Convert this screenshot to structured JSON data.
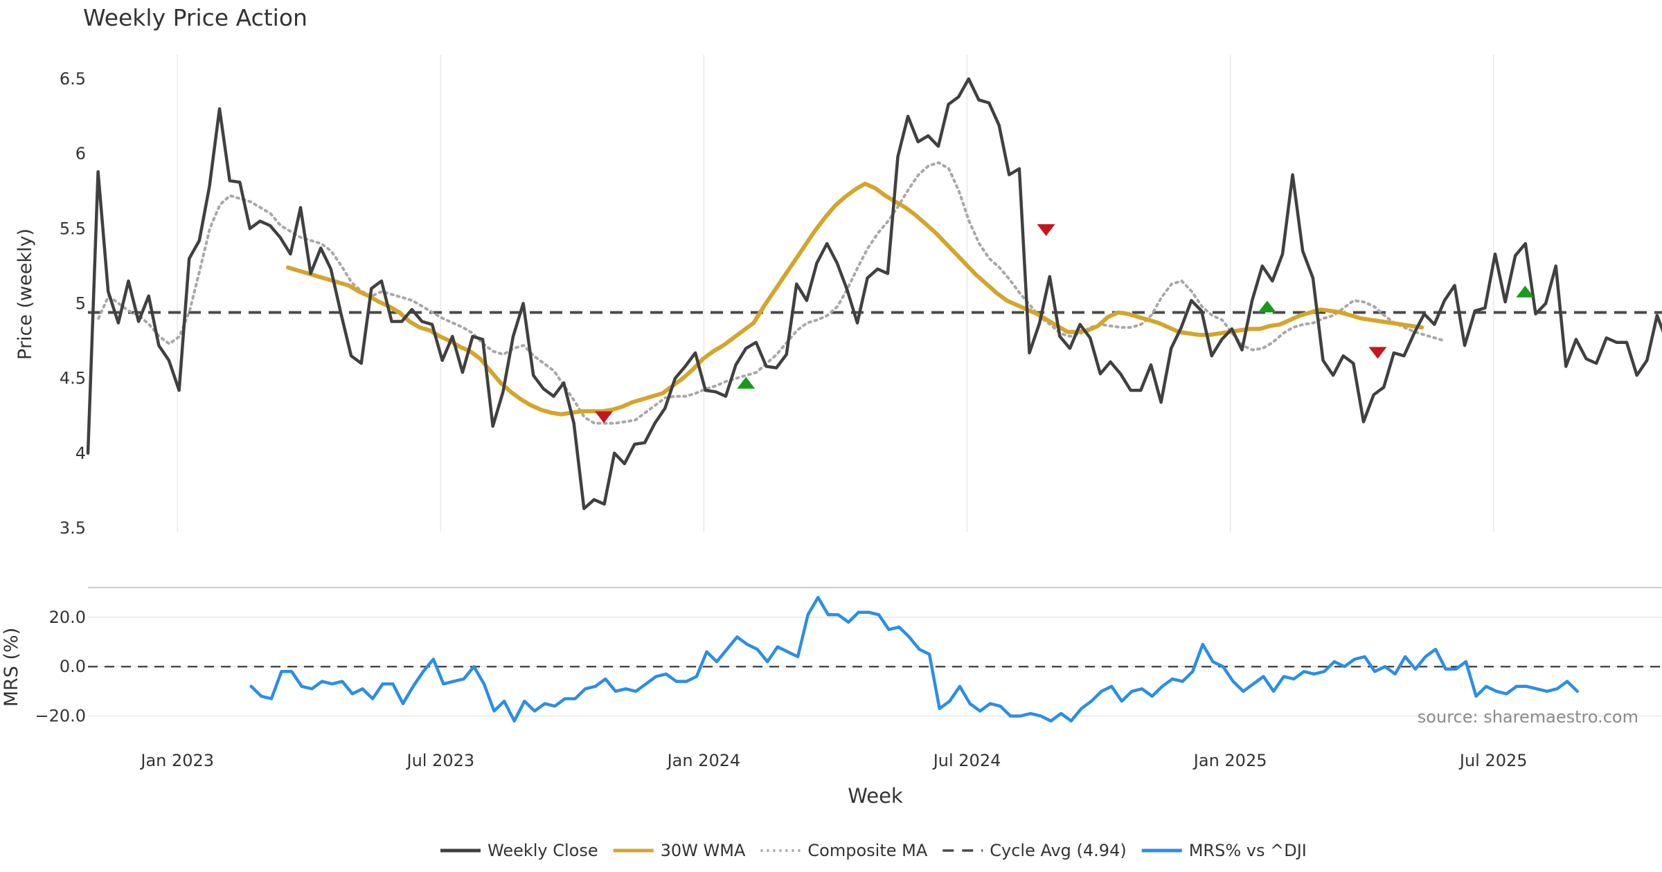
{
  "chart_data": {
    "type": "line",
    "title": "Weekly Price Action",
    "xlabel": "Week",
    "source": "source: sharemaestro.com",
    "colors": {
      "close": "#404040",
      "wma": "#d4a52c",
      "composite": "#a8a8a8",
      "cycle": "#4a4a4a",
      "mrs": "#2b8ee6",
      "buy": "#1a9a1a",
      "sell": "#c8141e",
      "grid": "#e8e8e8",
      "text": "#333333"
    },
    "x_ticks": [
      {
        "t": 2023.0,
        "label": "Jan 2023"
      },
      {
        "t": 2023.5,
        "label": "Jul 2023"
      },
      {
        "t": 2024.0,
        "label": "Jan 2024"
      },
      {
        "t": 2024.5,
        "label": "Jul 2024"
      },
      {
        "t": 2025.0,
        "label": "Jan 2025"
      },
      {
        "t": 2025.5,
        "label": "Jul 2025"
      }
    ],
    "xlim": [
      2022.83,
      2025.82
    ],
    "price_panel": {
      "ylabel": "Price (weekly)",
      "ylim": [
        3.5,
        6.5
      ],
      "y_ticks": [
        {
          "v": 3.5,
          "label": "3.5"
        },
        {
          "v": 4.0,
          "label": "4"
        },
        {
          "v": 4.5,
          "label": "4.5"
        },
        {
          "v": 5.0,
          "label": "5"
        },
        {
          "v": 5.5,
          "label": "5.5"
        },
        {
          "v": 6.0,
          "label": "6"
        },
        {
          "v": 6.5,
          "label": "6.5"
        }
      ],
      "cycle_avg": 4.94,
      "series": [
        {
          "name": "Weekly Close",
          "key": "close",
          "start": 2022.83,
          "step": 0.01923,
          "values": [
            4.0,
            5.88,
            5.08,
            4.87,
            5.15,
            4.88,
            5.05,
            4.72,
            4.62,
            4.42,
            5.3,
            5.42,
            5.78,
            6.3,
            5.82,
            5.81,
            5.5,
            5.55,
            5.52,
            5.44,
            5.33,
            5.64,
            5.2,
            5.37,
            5.23,
            4.93,
            4.65,
            4.6,
            5.1,
            5.15,
            4.88,
            4.88,
            4.96,
            4.88,
            4.86,
            4.62,
            4.78,
            4.54,
            4.78,
            4.76,
            4.18,
            4.41,
            4.78,
            5.0,
            4.52,
            4.43,
            4.38,
            4.47,
            4.2,
            3.63,
            3.69,
            3.66,
            4.0,
            3.93,
            4.06,
            4.07,
            4.2,
            4.3,
            4.5,
            4.58,
            4.67,
            4.42,
            4.41,
            4.38,
            4.59,
            4.7,
            4.74,
            4.58,
            4.57,
            4.66,
            5.13,
            5.02,
            5.27,
            5.4,
            5.27,
            5.09,
            4.87,
            5.17,
            5.23,
            5.2,
            5.98,
            6.25,
            6.08,
            6.12,
            6.05,
            6.33,
            6.38,
            6.5,
            6.36,
            6.34,
            6.19,
            5.86,
            5.9,
            4.67,
            4.87,
            5.18,
            4.78,
            4.7,
            4.86,
            4.77,
            4.53,
            4.61,
            4.53,
            4.42,
            4.42,
            4.59,
            4.34,
            4.7,
            4.84,
            5.02,
            4.95,
            4.65,
            4.76,
            4.83,
            4.69,
            5.02,
            5.25,
            5.15,
            5.33,
            5.86,
            5.35,
            5.17,
            4.62,
            4.52,
            4.65,
            4.6,
            4.21,
            4.39,
            4.44,
            4.67,
            4.65,
            4.8,
            4.93,
            4.86,
            5.02,
            5.12,
            4.72,
            4.95,
            4.97,
            5.33,
            5.01,
            5.32,
            5.4,
            4.93,
            5.0,
            5.25,
            4.58,
            4.76,
            4.63,
            4.6,
            4.77,
            4.74,
            4.74,
            4.52,
            4.62,
            4.92,
            4.74
          ]
        },
        {
          "name": "30W WMA",
          "key": "wma",
          "start": 2023.21,
          "step": 0.01923,
          "values": [
            5.24,
            5.22,
            5.2,
            5.18,
            5.16,
            5.14,
            5.12,
            5.08,
            5.05,
            5.01,
            4.98,
            4.94,
            4.88,
            4.84,
            4.82,
            4.78,
            4.75,
            4.71,
            4.68,
            4.63,
            4.55,
            4.47,
            4.41,
            4.36,
            4.32,
            4.29,
            4.27,
            4.26,
            4.27,
            4.28,
            4.28,
            4.28,
            4.29,
            4.31,
            4.34,
            4.36,
            4.38,
            4.4,
            4.45,
            4.5,
            4.56,
            4.63,
            4.68,
            4.72,
            4.77,
            4.82,
            4.87,
            4.98,
            5.08,
            5.18,
            5.28,
            5.38,
            5.48,
            5.57,
            5.65,
            5.71,
            5.76,
            5.8,
            5.77,
            5.72,
            5.68,
            5.64,
            5.59,
            5.53,
            5.47,
            5.4,
            5.33,
            5.26,
            5.19,
            5.13,
            5.07,
            5.02,
            4.99,
            4.96,
            4.93,
            4.89,
            4.85,
            4.81,
            4.81,
            4.82,
            4.85,
            4.91,
            4.94,
            4.93,
            4.91,
            4.89,
            4.87,
            4.84,
            4.81,
            4.8,
            4.79,
            4.79,
            4.8,
            4.81,
            4.82,
            4.83,
            4.83,
            4.85,
            4.86,
            4.89,
            4.92,
            4.94,
            4.96,
            4.95,
            4.94,
            4.92,
            4.9,
            4.89,
            4.88,
            4.87,
            4.86,
            4.85,
            4.84
          ]
        },
        {
          "name": "Composite MA",
          "key": "composite",
          "start": 2022.85,
          "step": 0.01923,
          "values": [
            4.9,
            5.05,
            5.0,
            4.95,
            4.92,
            4.86,
            4.78,
            4.73,
            4.78,
            4.95,
            5.22,
            5.5,
            5.66,
            5.72,
            5.7,
            5.68,
            5.64,
            5.6,
            5.52,
            5.48,
            5.44,
            5.42,
            5.4,
            5.35,
            5.25,
            5.14,
            5.08,
            5.05,
            5.08,
            5.06,
            5.04,
            5.02,
            4.98,
            4.94,
            4.9,
            4.87,
            4.84,
            4.8,
            4.73,
            4.68,
            4.66,
            4.7,
            4.72,
            4.65,
            4.6,
            4.55,
            4.45,
            4.35,
            4.24,
            4.2,
            4.2,
            4.2,
            4.21,
            4.22,
            4.27,
            4.32,
            4.37,
            4.38,
            4.38,
            4.4,
            4.43,
            4.45,
            4.48,
            4.5,
            4.52,
            4.54,
            4.6,
            4.66,
            4.74,
            4.82,
            4.87,
            4.89,
            4.92,
            4.98,
            5.1,
            5.24,
            5.37,
            5.47,
            5.55,
            5.65,
            5.76,
            5.86,
            5.92,
            5.94,
            5.9,
            5.75,
            5.55,
            5.4,
            5.3,
            5.24,
            5.16,
            5.07,
            4.99,
            4.91,
            4.86,
            4.8,
            4.78,
            4.8,
            4.84,
            4.86,
            4.85,
            4.84,
            4.84,
            4.86,
            4.92,
            5.04,
            5.13,
            5.15,
            5.08,
            4.98,
            4.92,
            4.89,
            4.8,
            4.72,
            4.69,
            4.7,
            4.74,
            4.8,
            4.84,
            4.86,
            4.87,
            4.9,
            4.92,
            4.97,
            5.02,
            5.01,
            4.98,
            4.92,
            4.87,
            4.84,
            4.81,
            4.79,
            4.77,
            4.75
          ]
        }
      ],
      "signals": [
        {
          "t": 2023.81,
          "v": 4.24,
          "type": "sell"
        },
        {
          "t": 2024.08,
          "v": 4.47,
          "type": "buy"
        },
        {
          "t": 2024.65,
          "v": 5.49,
          "type": "sell"
        },
        {
          "t": 2025.07,
          "v": 4.98,
          "type": "buy"
        },
        {
          "t": 2025.28,
          "v": 4.67,
          "type": "sell"
        },
        {
          "t": 2025.56,
          "v": 5.08,
          "type": "buy"
        }
      ]
    },
    "mrs_panel": {
      "ylabel": "MRS (%)",
      "ylim": [
        -26,
        32
      ],
      "y_ticks": [
        {
          "v": 20,
          "label": "20.0"
        },
        {
          "v": 0,
          "label": "0.0"
        },
        {
          "v": -20,
          "label": "−20.0"
        }
      ],
      "series": [
        {
          "name": "MRS% vs ^DJI",
          "key": "mrs",
          "start": 2023.14,
          "step": 0.01923,
          "values": [
            -8,
            -12,
            -13,
            -2,
            -2,
            -8,
            -9,
            -6,
            -7,
            -6,
            -11,
            -9,
            -13,
            -7,
            -7,
            -15,
            -8,
            -2,
            3,
            -7,
            -6,
            -5,
            0,
            -7,
            -18,
            -14,
            -22,
            -14,
            -18,
            -15,
            -16,
            -13,
            -13,
            -9,
            -8,
            -5,
            -10,
            -9,
            -10,
            -7,
            -4,
            -3,
            -6,
            -6,
            -4,
            6,
            2,
            7,
            12,
            9,
            7,
            2,
            8,
            6,
            4,
            21,
            28,
            21,
            21,
            18,
            22,
            22,
            21,
            15,
            16,
            12,
            7,
            5,
            -17,
            -14,
            -8,
            -15,
            -18,
            -15,
            -16,
            -20,
            -20,
            -19,
            -20,
            -22,
            -19,
            -22,
            -17,
            -14,
            -10,
            -8,
            -14,
            -10,
            -9,
            -12,
            -8,
            -5,
            -6,
            -2,
            9,
            2,
            0,
            -6,
            -10,
            -7,
            -4,
            -10,
            -4,
            -5,
            -2,
            -3,
            -2,
            2,
            0,
            3,
            4,
            -2,
            0,
            -3,
            4,
            -1,
            4,
            7,
            -1,
            -1,
            2,
            -12,
            -8,
            -10,
            -11,
            -8,
            -8,
            -9,
            -10,
            -9,
            -6,
            -10
          ]
        }
      ]
    },
    "legend": [
      {
        "label": "Weekly Close",
        "key": "close",
        "style": "solid"
      },
      {
        "label": "30W WMA",
        "key": "wma",
        "style": "solid"
      },
      {
        "label": "Composite MA",
        "key": "composite",
        "style": "dotted"
      },
      {
        "label": "Cycle Avg (4.94)",
        "key": "cycle",
        "style": "dashed"
      },
      {
        "label": "MRS% vs ^DJI",
        "key": "mrs",
        "style": "solid"
      }
    ]
  }
}
